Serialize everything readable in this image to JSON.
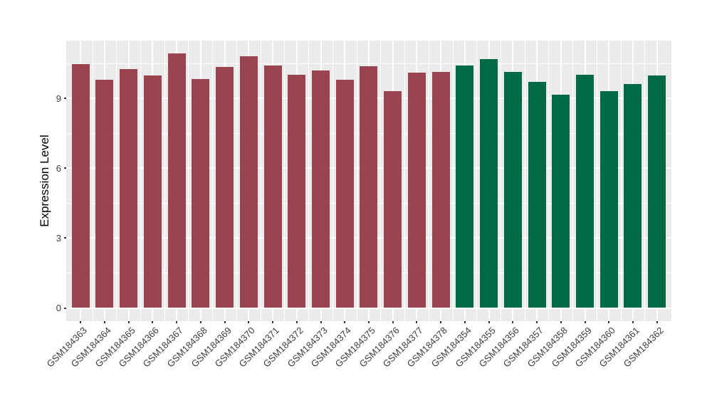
{
  "figure": {
    "background_color": "#FFFFFF",
    "panel_background_color": "#EBEBEB",
    "gridline_color": "#FFFFFF"
  },
  "chart_data": {
    "type": "bar",
    "title": "",
    "xlabel": "",
    "ylabel": "Expression Level",
    "legend": "none",
    "grid": "on",
    "y_axis": {
      "tick_values": [
        0,
        3,
        6,
        9
      ],
      "tick_labels": [
        "0",
        "3",
        "6",
        "9"
      ],
      "minor_tick_values": [
        1.5,
        4.5,
        7.5,
        10.5
      ],
      "display_range": [
        -0.55,
        11.5
      ]
    },
    "groups": [
      {
        "name": "series-red",
        "color": "#9A4450"
      },
      {
        "name": "series-green",
        "color": "#006946"
      }
    ],
    "bars": [
      {
        "label": "GSM184363",
        "value": 10.48,
        "group": 0
      },
      {
        "label": "GSM184364",
        "value": 9.8,
        "group": 0
      },
      {
        "label": "GSM184365",
        "value": 10.26,
        "group": 0
      },
      {
        "label": "GSM184366",
        "value": 10.0,
        "group": 0
      },
      {
        "label": "GSM184367",
        "value": 10.94,
        "group": 0
      },
      {
        "label": "GSM184368",
        "value": 9.84,
        "group": 0
      },
      {
        "label": "GSM184369",
        "value": 10.36,
        "group": 0
      },
      {
        "label": "GSM184370",
        "value": 10.81,
        "group": 0
      },
      {
        "label": "GSM184371",
        "value": 10.42,
        "group": 0
      },
      {
        "label": "GSM184372",
        "value": 10.04,
        "group": 0
      },
      {
        "label": "GSM184373",
        "value": 10.21,
        "group": 0
      },
      {
        "label": "GSM184374",
        "value": 9.82,
        "group": 0
      },
      {
        "label": "GSM184375",
        "value": 10.38,
        "group": 0
      },
      {
        "label": "GSM184376",
        "value": 9.31,
        "group": 0
      },
      {
        "label": "GSM184377",
        "value": 10.12,
        "group": 0
      },
      {
        "label": "GSM184378",
        "value": 10.16,
        "group": 0
      },
      {
        "label": "GSM184354",
        "value": 10.42,
        "group": 1
      },
      {
        "label": "GSM184355",
        "value": 10.69,
        "group": 1
      },
      {
        "label": "GSM184356",
        "value": 10.14,
        "group": 1
      },
      {
        "label": "GSM184357",
        "value": 9.72,
        "group": 1
      },
      {
        "label": "GSM184358",
        "value": 9.16,
        "group": 1
      },
      {
        "label": "GSM184359",
        "value": 10.02,
        "group": 1
      },
      {
        "label": "GSM184360",
        "value": 9.31,
        "group": 1
      },
      {
        "label": "GSM184361",
        "value": 9.62,
        "group": 1
      },
      {
        "label": "GSM184362",
        "value": 9.99,
        "group": 1
      }
    ]
  }
}
